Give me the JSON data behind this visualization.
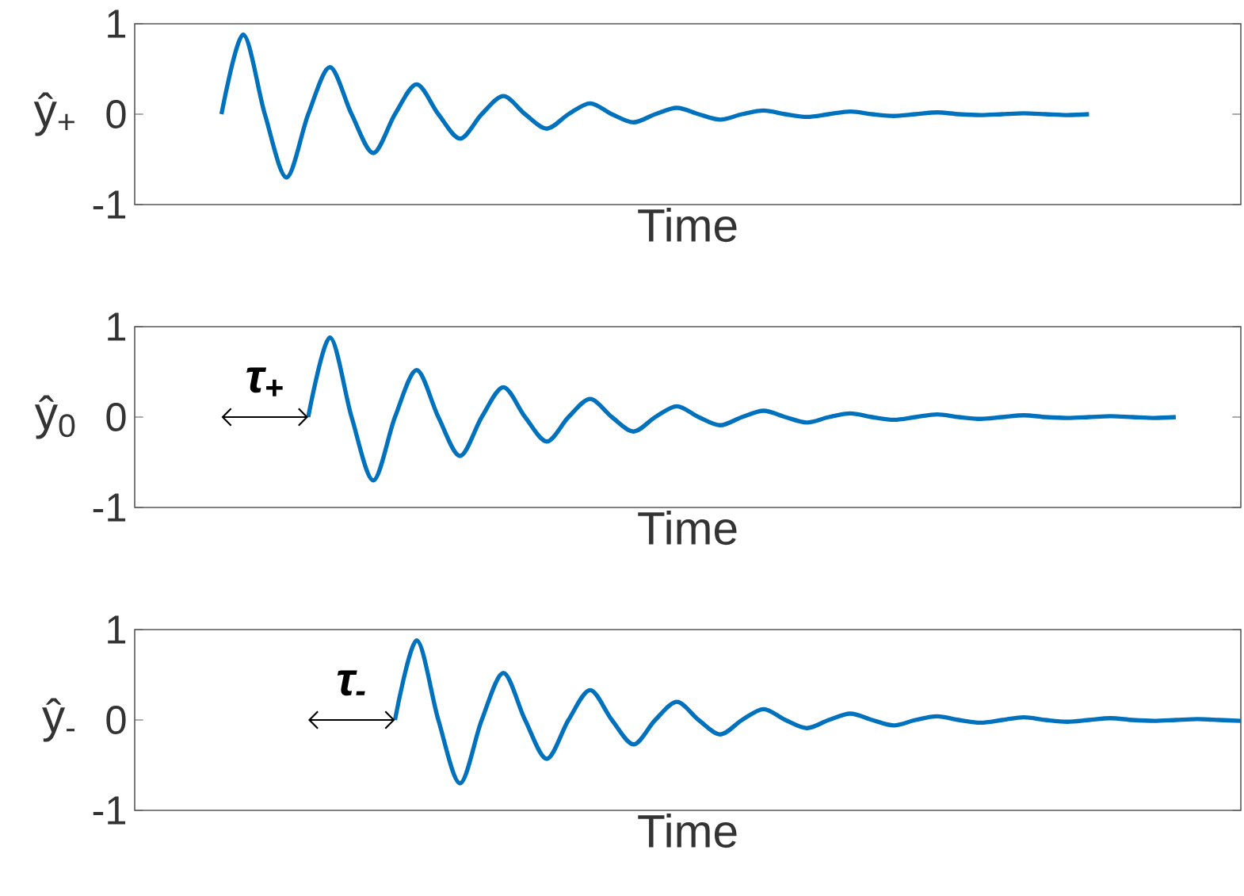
{
  "chart_data": [
    {
      "type": "line",
      "xlabel": "Time",
      "ylabel": "ŷ$_{+}$",
      "ylim": [
        -1,
        1
      ],
      "yticks": [
        -1,
        0,
        1
      ],
      "categories": [
        null,
        null,
        null,
        null,
        null,
        null,
        null,
        null,
        null,
        null,
        null,
        null,
        null,
        null,
        null,
        null,
        null,
        null,
        null,
        null,
        null,
        null,
        null,
        null,
        null,
        null,
        null,
        null,
        null,
        null,
        null,
        null,
        null,
        null,
        null,
        null,
        null,
        null,
        null,
        null,
        null,
        null,
        null,
        null,
        null,
        null,
        null,
        null,
        null,
        null,
        null,
        null
      ],
      "series": [
        {
          "color": "#0072bd",
          "values": [
            null,
            null,
            null,
            null,
            0,
            0.88,
            0,
            -0.7,
            0,
            0.52,
            0,
            -0.43,
            0,
            0.33,
            0,
            -0.27,
            0,
            0.2,
            0,
            -0.16,
            0,
            0.12,
            0,
            -0.09,
            0,
            0.07,
            0,
            -0.06,
            0,
            0.04,
            0,
            -0.03,
            0,
            0.03,
            0,
            -0.02,
            0,
            0.02,
            0,
            -0.01,
            0,
            0.01,
            0,
            -0.01,
            0,
            null,
            null,
            null,
            null,
            null,
            null,
            null
          ]
        }
      ]
    },
    {
      "type": "line",
      "xlabel": "Time",
      "ylabel": "ŷ$_{0}$",
      "ylim": [
        -1,
        1
      ],
      "yticks": [
        -1,
        0,
        1
      ],
      "annotations": [
        "τ$_{+}$"
      ],
      "categories": [
        null,
        null,
        null,
        null,
        null,
        null,
        null,
        null,
        null,
        null,
        null,
        null,
        null,
        null,
        null,
        null,
        null,
        null,
        null,
        null,
        null,
        null,
        null,
        null,
        null,
        null,
        null,
        null,
        null,
        null,
        null,
        null,
        null,
        null,
        null,
        null,
        null,
        null,
        null,
        null,
        null,
        null,
        null,
        null,
        null,
        null,
        null,
        null,
        null,
        null,
        null,
        null
      ],
      "series": [
        {
          "color": "#0072bd",
          "values": [
            null,
            null,
            null,
            null,
            null,
            null,
            null,
            null,
            0,
            0.88,
            0,
            -0.7,
            0,
            0.52,
            0,
            -0.43,
            0,
            0.33,
            0,
            -0.27,
            0,
            0.2,
            0,
            -0.16,
            0,
            0.12,
            0,
            -0.09,
            0,
            0.07,
            0,
            -0.06,
            0,
            0.04,
            0,
            -0.03,
            0,
            0.03,
            0,
            -0.02,
            0,
            0.02,
            0,
            -0.01,
            0,
            0.01,
            0,
            -0.01,
            0,
            null,
            null,
            null
          ]
        }
      ]
    },
    {
      "type": "line",
      "xlabel": "Time",
      "ylabel": "ŷ$_{-}$",
      "ylim": [
        -1,
        1
      ],
      "yticks": [
        -1,
        0,
        1
      ],
      "annotations": [
        "τ$_{-}$"
      ],
      "categories": [
        null,
        null,
        null,
        null,
        null,
        null,
        null,
        null,
        null,
        null,
        null,
        null,
        null,
        null,
        null,
        null,
        null,
        null,
        null,
        null,
        null,
        null,
        null,
        null,
        null,
        null,
        null,
        null,
        null,
        null,
        null,
        null,
        null,
        null,
        null,
        null,
        null,
        null,
        null,
        null,
        null,
        null,
        null,
        null,
        null,
        null,
        null,
        null,
        null,
        null,
        null,
        null
      ],
      "series": [
        {
          "color": "#0072bd",
          "values": [
            null,
            null,
            null,
            null,
            null,
            null,
            null,
            null,
            null,
            null,
            null,
            null,
            0,
            0.88,
            0,
            -0.7,
            0,
            0.52,
            0,
            -0.43,
            0,
            0.33,
            0,
            -0.27,
            0,
            0.2,
            0,
            -0.16,
            0,
            0.12,
            0,
            -0.09,
            0,
            0.07,
            0,
            -0.06,
            0,
            0.04,
            0,
            -0.03,
            0,
            0.03,
            0,
            -0.02,
            0,
            0.02,
            0,
            -0.01,
            0,
            0.01,
            0,
            -0.01
          ]
        }
      ]
    }
  ]
}
